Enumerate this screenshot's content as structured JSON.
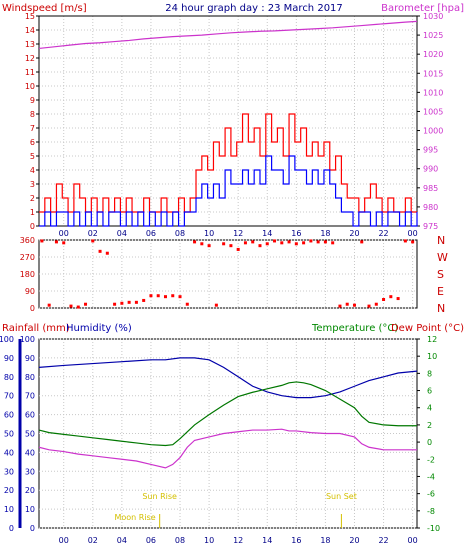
{
  "title": "24 hour graph day : 23 March 2017",
  "colors": {
    "wind_speed": "#0000ff",
    "wind_gust": "#ff0000",
    "barometer": "#cc33cc",
    "wind_dir": "#ff0000",
    "humidity": "#0000aa",
    "temperature": "#007700",
    "dew_point": "#cc33cc",
    "rainfall": "#0000aa",
    "sun": "#d4c000",
    "label_red": "#cc0000",
    "label_green": "#008800",
    "grid": "#c8c8c8",
    "frame": "#000000"
  },
  "chart_data": [
    {
      "type": "line",
      "panel": "wind_barometer",
      "ylabel_left": "Windspeed [m/s]",
      "ylabel_right": "Barometer [hpa]",
      "ylim_left": [
        0,
        15
      ],
      "ylim_right": [
        975,
        1030
      ],
      "yticks_left": [
        0,
        1,
        2,
        3,
        4,
        5,
        6,
        7,
        8,
        9,
        10,
        11,
        12,
        13,
        14,
        15
      ],
      "yticks_right": [
        975,
        980,
        985,
        990,
        995,
        1000,
        1005,
        1010,
        1015,
        1020,
        1025,
        1030
      ],
      "xlim": [
        -1.7,
        24.3
      ],
      "xticks": [
        "00",
        "02",
        "04",
        "06",
        "08",
        "10",
        "12",
        "14",
        "16",
        "18",
        "20",
        "22",
        "00"
      ],
      "xtick_values": [
        0,
        2,
        4,
        6,
        8,
        10,
        12,
        14,
        16,
        18,
        20,
        22,
        24
      ],
      "grid": true,
      "series": [
        {
          "key": "barometer",
          "axis": "right",
          "x": [
            -1.7,
            -0.5,
            0.5,
            1.5,
            2.5,
            3.5,
            4.5,
            5.5,
            6.5,
            7.5,
            8.5,
            9.5,
            10.5,
            11.5,
            12.5,
            13.5,
            14.5,
            15.5,
            16.5,
            17.5,
            18.5,
            19.5,
            20.5,
            21.5,
            22.5,
            23.5,
            24.3
          ],
          "values": [
            1021.5,
            1022.0,
            1022.4,
            1022.8,
            1023.0,
            1023.3,
            1023.6,
            1024.0,
            1024.3,
            1024.6,
            1024.8,
            1025.0,
            1025.3,
            1025.6,
            1025.8,
            1026.0,
            1026.1,
            1026.3,
            1026.5,
            1026.7,
            1026.9,
            1027.2,
            1027.5,
            1027.8,
            1028.1,
            1028.4,
            1028.6
          ]
        },
        {
          "key": "wind_gust",
          "axis": "left",
          "x": [
            -1.7,
            -1.3,
            -0.9,
            -0.5,
            -0.1,
            0.3,
            0.7,
            1.1,
            1.5,
            1.9,
            2.3,
            2.7,
            3.1,
            3.5,
            3.9,
            4.3,
            4.7,
            5.1,
            5.5,
            5.9,
            6.3,
            6.7,
            7.1,
            7.5,
            7.9,
            8.3,
            8.7,
            9.1,
            9.5,
            9.9,
            10.3,
            10.7,
            11.1,
            11.5,
            11.9,
            12.3,
            12.7,
            13.1,
            13.5,
            13.9,
            14.3,
            14.7,
            15.1,
            15.5,
            15.9,
            16.3,
            16.7,
            17.1,
            17.5,
            17.9,
            18.3,
            18.7,
            19.1,
            19.5,
            19.9,
            20.3,
            20.7,
            21.1,
            21.5,
            21.9,
            22.3,
            22.7,
            23.1,
            23.5,
            23.9,
            24.3
          ],
          "values": [
            1,
            2,
            1,
            3,
            2,
            1,
            3,
            2,
            1,
            2,
            1,
            2,
            1,
            2,
            1,
            2,
            1,
            1,
            2,
            1,
            1,
            2,
            1,
            1,
            2,
            1,
            2,
            4,
            5,
            4,
            6,
            5,
            7,
            5,
            6,
            8,
            6,
            7,
            5,
            8,
            6,
            7,
            5,
            8,
            6,
            7,
            5,
            6,
            5,
            6,
            4,
            5,
            3,
            2,
            2,
            1,
            2,
            3,
            2,
            1,
            2,
            1,
            1,
            2,
            1,
            1
          ]
        },
        {
          "key": "wind_speed",
          "axis": "left",
          "x": [
            -1.7,
            -1.3,
            -0.9,
            -0.5,
            -0.1,
            0.3,
            0.7,
            1.1,
            1.5,
            1.9,
            2.3,
            2.7,
            3.1,
            3.5,
            3.9,
            4.3,
            4.7,
            5.1,
            5.5,
            5.9,
            6.3,
            6.7,
            7.1,
            7.5,
            7.9,
            8.3,
            8.7,
            9.1,
            9.5,
            9.9,
            10.3,
            10.7,
            11.1,
            11.5,
            11.9,
            12.3,
            12.7,
            13.1,
            13.5,
            13.9,
            14.3,
            14.7,
            15.1,
            15.5,
            15.9,
            16.3,
            16.7,
            17.1,
            17.5,
            17.9,
            18.3,
            18.7,
            19.1,
            19.5,
            19.9,
            20.3,
            20.7,
            21.1,
            21.5,
            21.9,
            22.3,
            22.7,
            23.1,
            23.5,
            23.9,
            24.3
          ],
          "values": [
            0,
            1,
            0,
            1,
            1,
            0,
            1,
            0,
            1,
            0,
            1,
            0,
            1,
            1,
            0,
            1,
            0,
            1,
            0,
            1,
            0,
            1,
            0,
            1,
            0,
            1,
            1,
            2,
            3,
            2,
            3,
            2,
            4,
            3,
            3,
            4,
            3,
            4,
            3,
            5,
            4,
            4,
            3,
            5,
            4,
            4,
            3,
            4,
            3,
            4,
            3,
            2,
            1,
            1,
            0,
            1,
            1,
            0,
            1,
            0,
            1,
            1,
            0,
            1,
            0,
            1
          ]
        }
      ]
    },
    {
      "type": "scatter",
      "panel": "wind_direction",
      "yticks": [
        0,
        90,
        180,
        270,
        360
      ],
      "ylim": [
        0,
        360
      ],
      "compass_labels": [
        "N",
        "W",
        "S",
        "E",
        "N"
      ],
      "xlim": [
        -1.7,
        24.3
      ],
      "grid": true,
      "series": [
        {
          "key": "wind_dir",
          "x": [
            -1.5,
            -1.0,
            -0.5,
            0.0,
            0.5,
            1.0,
            1.5,
            2.0,
            2.5,
            3.0,
            3.5,
            4.0,
            4.5,
            5.0,
            5.5,
            6.0,
            6.5,
            7.0,
            7.5,
            8.0,
            8.5,
            9.0,
            9.5,
            10.0,
            10.5,
            11.0,
            11.5,
            12.0,
            12.5,
            13.0,
            13.5,
            14.0,
            14.5,
            15.0,
            15.5,
            16.0,
            16.5,
            17.0,
            17.5,
            18.0,
            18.5,
            19.0,
            19.5,
            20.0,
            20.5,
            21.0,
            21.5,
            22.0,
            22.5,
            23.0,
            23.5,
            24.0
          ],
          "values": [
            355,
            15,
            350,
            345,
            10,
            5,
            20,
            355,
            300,
            290,
            20,
            25,
            30,
            30,
            40,
            65,
            65,
            60,
            65,
            60,
            20,
            350,
            340,
            330,
            15,
            340,
            330,
            310,
            345,
            350,
            330,
            340,
            355,
            345,
            350,
            340,
            345,
            355,
            350,
            350,
            345,
            10,
            20,
            15,
            350,
            10,
            20,
            45,
            60,
            50,
            355,
            350
          ]
        }
      ]
    },
    {
      "type": "line",
      "panel": "rain_humidity_temp",
      "labels": [
        "Rainfall (mm)",
        "Humidity (%)",
        "Temperature (°C)",
        "Dew Point (°C)"
      ],
      "ylim_rain": [
        0,
        10
      ],
      "yticks_rain": [
        0,
        10,
        20,
        30,
        40,
        50,
        60,
        70,
        80,
        90,
        100
      ],
      "ylim_humidity": [
        0,
        100
      ],
      "yticks_humidity": [
        0,
        10,
        20,
        30,
        40,
        50,
        60,
        70,
        80,
        90,
        100
      ],
      "ylim_temp": [
        -10,
        12
      ],
      "yticks_temp": [
        -10,
        -8,
        -6,
        -4,
        -2,
        0,
        2,
        4,
        6,
        8,
        10,
        12
      ],
      "xlim": [
        -1.7,
        24.3
      ],
      "grid": true,
      "annotations": [
        {
          "text": "Sun Rise",
          "x": 6.6
        },
        {
          "text": "Sun Set",
          "x": 19.1
        },
        {
          "text": "Moon Rise",
          "x": 6.6
        }
      ],
      "series": [
        {
          "key": "humidity",
          "axis": "humidity",
          "x": [
            -1.7,
            0,
            2,
            4,
            6,
            7,
            8,
            9,
            10,
            11,
            12,
            13,
            14,
            15,
            16,
            17,
            18,
            19,
            20,
            21,
            22,
            23,
            24.3
          ],
          "values": [
            85,
            86,
            87,
            88,
            89,
            89,
            90,
            90,
            89,
            85,
            80,
            75,
            72,
            70,
            69,
            69,
            70,
            72,
            75,
            78,
            80,
            82,
            83
          ]
        },
        {
          "key": "temperature",
          "axis": "temp",
          "x": [
            -1.7,
            -1,
            0,
            1,
            2,
            3,
            4,
            5,
            6,
            7,
            7.5,
            8,
            8.5,
            9,
            10,
            11,
            12,
            13,
            14,
            15,
            15.5,
            16,
            16.5,
            17,
            18,
            19,
            20,
            20.5,
            21,
            22,
            23,
            24.3
          ],
          "values": [
            1.4,
            1.1,
            0.9,
            0.7,
            0.5,
            0.3,
            0.1,
            -0.1,
            -0.3,
            -0.4,
            -0.3,
            0.4,
            1.2,
            2.0,
            3.2,
            4.3,
            5.3,
            5.8,
            6.2,
            6.6,
            6.9,
            7.0,
            6.9,
            6.7,
            6.0,
            5.0,
            4.0,
            3.0,
            2.3,
            2.0,
            1.9,
            1.9
          ]
        },
        {
          "key": "dew_point",
          "axis": "temp",
          "x": [
            -1.7,
            -1,
            0,
            1,
            2,
            3,
            4,
            5,
            6,
            7,
            7.5,
            8,
            8.5,
            9,
            10,
            11,
            12,
            13,
            14,
            15,
            15.5,
            16,
            17,
            18,
            19,
            20,
            20.5,
            21,
            22,
            23,
            24.3
          ],
          "values": [
            -0.6,
            -0.9,
            -1.1,
            -1.4,
            -1.6,
            -1.8,
            -2.0,
            -2.2,
            -2.6,
            -3.0,
            -2.6,
            -1.8,
            -0.6,
            0.2,
            0.6,
            1.0,
            1.2,
            1.4,
            1.4,
            1.5,
            1.3,
            1.3,
            1.1,
            1.0,
            1.0,
            0.6,
            -0.2,
            -0.6,
            -0.9,
            -0.9,
            -0.9
          ]
        }
      ]
    }
  ]
}
